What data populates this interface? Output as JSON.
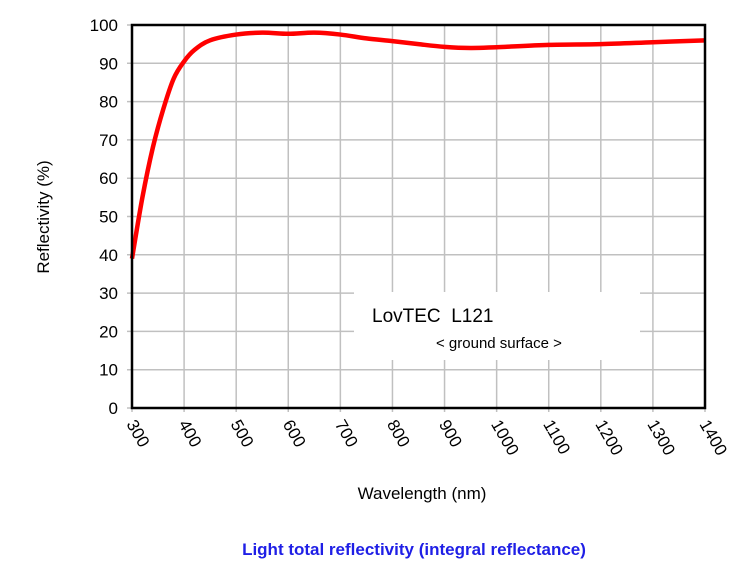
{
  "chart_data": {
    "type": "line",
    "title": "Light total reflectivity (integral reflectance)",
    "xlabel": "Wavelength (nm)",
    "ylabel": "Reflectivity (%)",
    "xlim": [
      300,
      1400
    ],
    "ylim": [
      0,
      100
    ],
    "xticks": [
      300,
      400,
      500,
      600,
      700,
      800,
      900,
      1000,
      1100,
      1200,
      1300,
      1400
    ],
    "yticks": [
      0,
      10,
      20,
      30,
      40,
      50,
      60,
      70,
      80,
      90,
      100
    ],
    "grid": true,
    "annotation": {
      "line1": "LovTEC  L121",
      "line2": "< ground surface >"
    },
    "series": [
      {
        "color": "#ff0000",
        "x": [
          300,
          320,
          340,
          360,
          380,
          400,
          420,
          450,
          500,
          550,
          600,
          650,
          700,
          750,
          800,
          850,
          900,
          950,
          1000,
          1100,
          1200,
          1300,
          1400
        ],
        "y": [
          39,
          55,
          68,
          78,
          86,
          90.5,
          93.5,
          96,
          97.5,
          98,
          97.7,
          98,
          97.5,
          96.5,
          95.8,
          95,
          94.3,
          94,
          94.2,
          94.8,
          95,
          95.5,
          96
        ]
      }
    ]
  }
}
